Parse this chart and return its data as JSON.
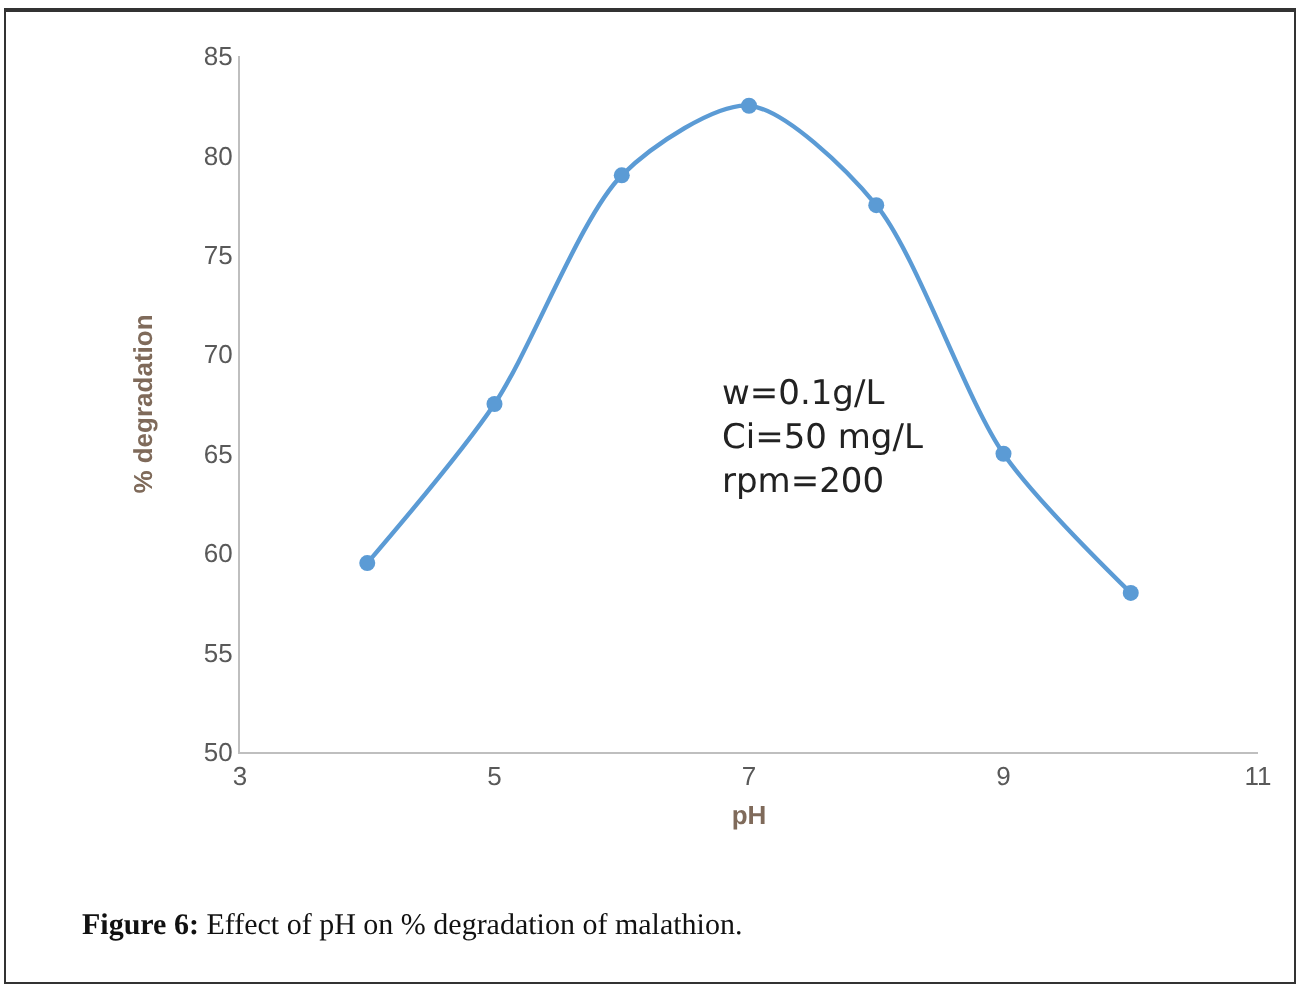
{
  "chart_data": {
    "type": "line",
    "xlabel": "pH",
    "ylabel": "% degradation",
    "x": [
      4,
      5,
      6,
      7,
      8,
      9,
      10
    ],
    "series": [
      {
        "color": "#5b9bd5",
        "values": [
          59.5,
          67.5,
          79,
          82.5,
          77.5,
          65,
          58
        ]
      }
    ],
    "xlim": [
      3,
      11
    ],
    "xticks": [
      3,
      5,
      7,
      9,
      11
    ],
    "ylim": [
      50,
      85
    ],
    "yticks": [
      50,
      55,
      60,
      65,
      70,
      75,
      80,
      85
    ],
    "grid": false,
    "marker": "circle",
    "line_style": "solid",
    "annotations": [
      "w=0.1g/L\nCi=50 mg/L\nrpm=200",
      "Figure 6: Effect of pH on % degradation of malathion."
    ]
  }
}
